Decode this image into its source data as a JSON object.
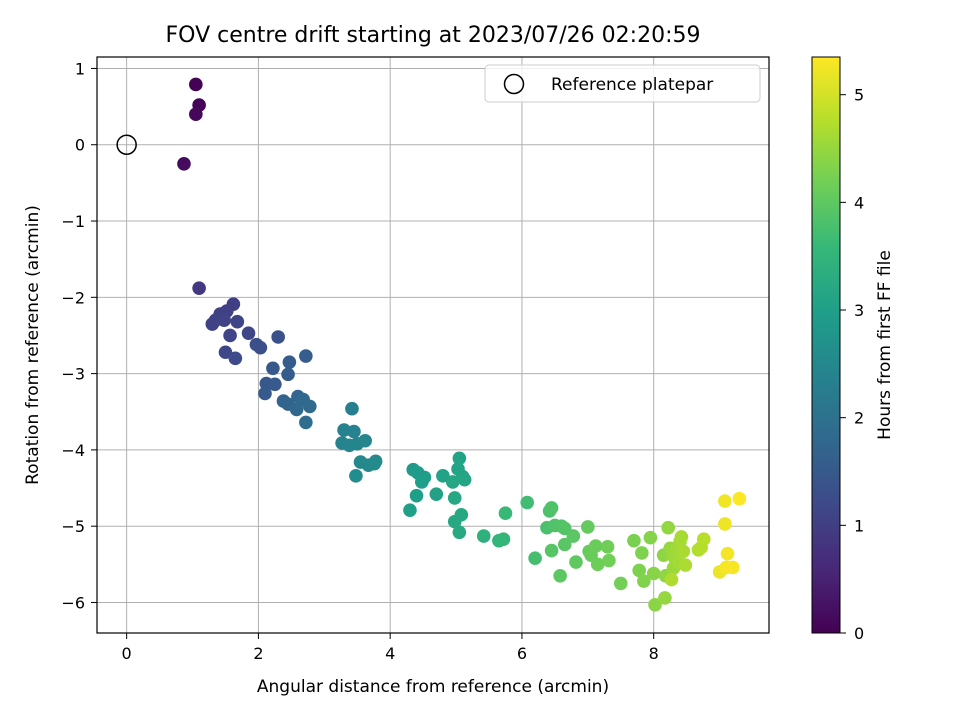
{
  "chart_data": {
    "type": "scatter",
    "title": "FOV centre drift starting at 2023/07/26 02:20:59",
    "xlabel": "Angular distance from reference (arcmin)",
    "ylabel": "Rotation from reference (arcmin)",
    "xlim": [
      -0.45,
      9.75
    ],
    "ylim": [
      -6.4,
      1.15
    ],
    "x_ticks": [
      0,
      2,
      4,
      6,
      8
    ],
    "y_ticks": [
      1,
      0,
      -1,
      -2,
      -3,
      -4,
      -5,
      -6
    ],
    "grid": true,
    "legend": {
      "placement": "top-right",
      "entries": [
        "Reference platepar"
      ]
    },
    "reference_point": {
      "x": 0,
      "y": 0,
      "label": "Reference platepar"
    },
    "colorbar": {
      "label": "Hours from first FF file",
      "range": [
        0,
        5.35
      ],
      "ticks": [
        0,
        1,
        2,
        3,
        4,
        5
      ],
      "colormap": [
        "#440154",
        "#482878",
        "#3e4989",
        "#31688e",
        "#26828e",
        "#1f9e89",
        "#35b779",
        "#6ece58",
        "#b5de2b",
        "#fde725"
      ]
    },
    "points": [
      {
        "x": 1.05,
        "y": 0.79,
        "t": 0.02
      },
      {
        "x": 1.1,
        "y": 0.52,
        "t": 0.06
      },
      {
        "x": 1.05,
        "y": 0.4,
        "t": 0.1
      },
      {
        "x": 0.87,
        "y": -0.25,
        "t": 0.15
      },
      {
        "x": 1.1,
        "y": -1.88,
        "t": 0.9
      },
      {
        "x": 1.62,
        "y": -2.09,
        "t": 1.0
      },
      {
        "x": 1.52,
        "y": -2.18,
        "t": 1.02
      },
      {
        "x": 1.42,
        "y": -2.22,
        "t": 1.05
      },
      {
        "x": 1.35,
        "y": -2.3,
        "t": 1.06
      },
      {
        "x": 1.3,
        "y": -2.35,
        "t": 1.07
      },
      {
        "x": 1.48,
        "y": -2.3,
        "t": 1.08
      },
      {
        "x": 1.68,
        "y": -2.32,
        "t": 1.1
      },
      {
        "x": 1.57,
        "y": -2.5,
        "t": 1.12
      },
      {
        "x": 1.85,
        "y": -2.47,
        "t": 1.14
      },
      {
        "x": 1.5,
        "y": -2.72,
        "t": 1.16
      },
      {
        "x": 1.65,
        "y": -2.8,
        "t": 1.2
      },
      {
        "x": 1.97,
        "y": -2.62,
        "t": 1.3
      },
      {
        "x": 2.03,
        "y": -2.66,
        "t": 1.32
      },
      {
        "x": 2.3,
        "y": -2.52,
        "t": 1.35
      },
      {
        "x": 2.72,
        "y": -2.77,
        "t": 1.6
      },
      {
        "x": 2.47,
        "y": -2.85,
        "t": 1.55
      },
      {
        "x": 2.45,
        "y": -3.01,
        "t": 1.58
      },
      {
        "x": 2.22,
        "y": -2.93,
        "t": 1.45
      },
      {
        "x": 2.12,
        "y": -3.13,
        "t": 1.48
      },
      {
        "x": 2.25,
        "y": -3.14,
        "t": 1.5
      },
      {
        "x": 2.1,
        "y": -3.26,
        "t": 1.52
      },
      {
        "x": 2.38,
        "y": -3.36,
        "t": 1.7
      },
      {
        "x": 2.45,
        "y": -3.4,
        "t": 1.72
      },
      {
        "x": 2.6,
        "y": -3.3,
        "t": 1.75
      },
      {
        "x": 2.68,
        "y": -3.34,
        "t": 1.78
      },
      {
        "x": 2.58,
        "y": -3.47,
        "t": 1.8
      },
      {
        "x": 2.78,
        "y": -3.43,
        "t": 1.85
      },
      {
        "x": 2.72,
        "y": -3.64,
        "t": 1.9
      },
      {
        "x": 3.42,
        "y": -3.46,
        "t": 2.3
      },
      {
        "x": 3.3,
        "y": -3.74,
        "t": 2.35
      },
      {
        "x": 3.45,
        "y": -3.76,
        "t": 2.38
      },
      {
        "x": 3.27,
        "y": -3.91,
        "t": 2.4
      },
      {
        "x": 3.38,
        "y": -3.94,
        "t": 2.42
      },
      {
        "x": 3.5,
        "y": -3.92,
        "t": 2.44
      },
      {
        "x": 3.62,
        "y": -3.88,
        "t": 2.46
      },
      {
        "x": 3.55,
        "y": -4.16,
        "t": 2.5
      },
      {
        "x": 3.67,
        "y": -4.2,
        "t": 2.52
      },
      {
        "x": 3.76,
        "y": -4.18,
        "t": 2.55
      },
      {
        "x": 3.78,
        "y": -4.15,
        "t": 2.57
      },
      {
        "x": 3.48,
        "y": -4.34,
        "t": 2.6
      },
      {
        "x": 4.35,
        "y": -4.26,
        "t": 2.9
      },
      {
        "x": 4.42,
        "y": -4.3,
        "t": 2.92
      },
      {
        "x": 4.52,
        "y": -4.36,
        "t": 2.95
      },
      {
        "x": 4.48,
        "y": -4.42,
        "t": 2.97
      },
      {
        "x": 4.4,
        "y": -4.6,
        "t": 3.0
      },
      {
        "x": 4.3,
        "y": -4.79,
        "t": 3.02
      },
      {
        "x": 4.7,
        "y": -4.58,
        "t": 3.05
      },
      {
        "x": 4.8,
        "y": -4.34,
        "t": 3.06
      },
      {
        "x": 5.05,
        "y": -4.11,
        "t": 3.08
      },
      {
        "x": 5.03,
        "y": -4.25,
        "t": 3.1
      },
      {
        "x": 5.1,
        "y": -4.35,
        "t": 3.12
      },
      {
        "x": 5.13,
        "y": -4.39,
        "t": 3.14
      },
      {
        "x": 4.95,
        "y": -4.42,
        "t": 3.16
      },
      {
        "x": 4.98,
        "y": -4.63,
        "t": 3.18
      },
      {
        "x": 5.08,
        "y": -4.85,
        "t": 3.2
      },
      {
        "x": 4.98,
        "y": -4.94,
        "t": 3.22
      },
      {
        "x": 5.05,
        "y": -5.08,
        "t": 3.24
      },
      {
        "x": 5.42,
        "y": -5.13,
        "t": 3.4
      },
      {
        "x": 5.65,
        "y": -5.19,
        "t": 3.5
      },
      {
        "x": 5.72,
        "y": -5.17,
        "t": 3.55
      },
      {
        "x": 5.75,
        "y": -4.83,
        "t": 3.6
      },
      {
        "x": 6.08,
        "y": -4.69,
        "t": 3.7
      },
      {
        "x": 6.2,
        "y": -5.42,
        "t": 3.75
      },
      {
        "x": 6.38,
        "y": -5.02,
        "t": 3.8
      },
      {
        "x": 6.42,
        "y": -4.8,
        "t": 3.82
      },
      {
        "x": 6.45,
        "y": -4.76,
        "t": 3.84
      },
      {
        "x": 6.5,
        "y": -4.99,
        "t": 3.86
      },
      {
        "x": 6.6,
        "y": -5.0,
        "t": 3.88
      },
      {
        "x": 6.65,
        "y": -5.03,
        "t": 3.9
      },
      {
        "x": 6.45,
        "y": -5.32,
        "t": 3.92
      },
      {
        "x": 6.65,
        "y": -5.24,
        "t": 3.94
      },
      {
        "x": 6.78,
        "y": -5.13,
        "t": 3.96
      },
      {
        "x": 6.58,
        "y": -5.65,
        "t": 3.98
      },
      {
        "x": 6.82,
        "y": -5.47,
        "t": 4.0
      },
      {
        "x": 7.0,
        "y": -5.01,
        "t": 4.05
      },
      {
        "x": 7.02,
        "y": -5.33,
        "t": 4.08
      },
      {
        "x": 7.05,
        "y": -5.38,
        "t": 4.1
      },
      {
        "x": 7.12,
        "y": -5.26,
        "t": 4.12
      },
      {
        "x": 7.15,
        "y": -5.5,
        "t": 4.14
      },
      {
        "x": 7.3,
        "y": -5.27,
        "t": 4.16
      },
      {
        "x": 7.32,
        "y": -5.45,
        "t": 4.18
      },
      {
        "x": 7.5,
        "y": -5.75,
        "t": 4.2
      },
      {
        "x": 7.7,
        "y": -5.19,
        "t": 4.25
      },
      {
        "x": 7.78,
        "y": -5.58,
        "t": 4.28
      },
      {
        "x": 7.82,
        "y": -5.35,
        "t": 4.3
      },
      {
        "x": 7.85,
        "y": -5.72,
        "t": 4.32
      },
      {
        "x": 7.95,
        "y": -5.15,
        "t": 4.35
      },
      {
        "x": 8.0,
        "y": -5.62,
        "t": 4.38
      },
      {
        "x": 8.02,
        "y": -6.03,
        "t": 4.4
      },
      {
        "x": 8.15,
        "y": -5.38,
        "t": 4.42
      },
      {
        "x": 8.18,
        "y": -5.65,
        "t": 4.44
      },
      {
        "x": 8.22,
        "y": -5.02,
        "t": 4.46
      },
      {
        "x": 8.17,
        "y": -5.94,
        "t": 4.48
      },
      {
        "x": 8.25,
        "y": -5.29,
        "t": 4.5
      },
      {
        "x": 8.28,
        "y": -5.37,
        "t": 4.52
      },
      {
        "x": 8.3,
        "y": -5.55,
        "t": 4.54
      },
      {
        "x": 8.32,
        "y": -5.42,
        "t": 4.56
      },
      {
        "x": 8.35,
        "y": -5.3,
        "t": 4.58
      },
      {
        "x": 8.38,
        "y": -5.47,
        "t": 4.6
      },
      {
        "x": 8.4,
        "y": -5.2,
        "t": 4.62
      },
      {
        "x": 8.42,
        "y": -5.14,
        "t": 4.64
      },
      {
        "x": 8.45,
        "y": -5.33,
        "t": 4.66
      },
      {
        "x": 8.48,
        "y": -5.51,
        "t": 4.68
      },
      {
        "x": 8.27,
        "y": -5.7,
        "t": 4.7
      },
      {
        "x": 8.68,
        "y": -5.31,
        "t": 4.72
      },
      {
        "x": 8.72,
        "y": -5.28,
        "t": 4.74
      },
      {
        "x": 8.76,
        "y": -5.17,
        "t": 4.76
      },
      {
        "x": 9.0,
        "y": -5.6,
        "t": 5.2
      },
      {
        "x": 9.08,
        "y": -4.97,
        "t": 5.22
      },
      {
        "x": 9.08,
        "y": -4.67,
        "t": 5.24
      },
      {
        "x": 9.12,
        "y": -5.36,
        "t": 5.26
      },
      {
        "x": 9.1,
        "y": -5.54,
        "t": 5.28
      },
      {
        "x": 9.2,
        "y": -5.54,
        "t": 5.3
      },
      {
        "x": 9.3,
        "y": -4.64,
        "t": 5.33
      }
    ]
  }
}
